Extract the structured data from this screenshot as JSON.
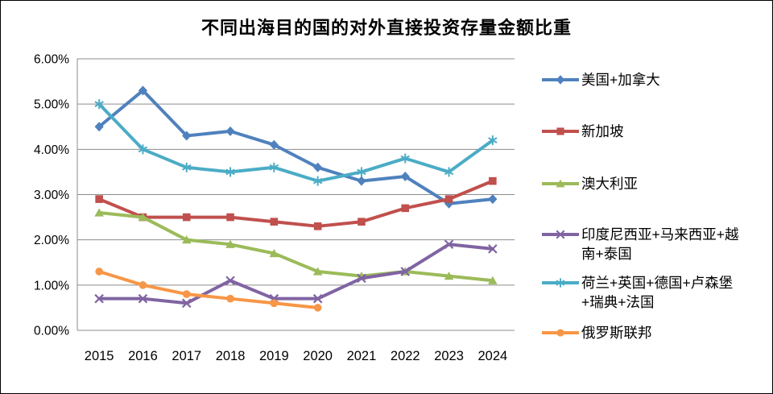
{
  "chart_data": {
    "type": "line",
    "title": "不同出海目的国的对外直接投资存量金额比重",
    "categories": [
      "2015",
      "2016",
      "2017",
      "2018",
      "2019",
      "2020",
      "2021",
      "2022",
      "2023",
      "2024"
    ],
    "series": [
      {
        "name": "美国+加拿大",
        "color": "#4F81BD",
        "marker": "diamond",
        "values": [
          4.5,
          5.3,
          4.3,
          4.4,
          4.1,
          3.6,
          3.3,
          3.4,
          2.8,
          2.9
        ]
      },
      {
        "name": "新加坡",
        "color": "#C0504D",
        "marker": "square",
        "values": [
          2.9,
          2.5,
          2.5,
          2.5,
          2.4,
          2.3,
          2.4,
          2.7,
          2.9,
          3.3
        ]
      },
      {
        "name": "澳大利亚",
        "color": "#9BBB59",
        "marker": "triangle",
        "values": [
          2.6,
          2.5,
          2.0,
          1.9,
          1.7,
          1.3,
          1.2,
          1.3,
          1.2,
          1.1
        ]
      },
      {
        "name": "印度尼西亚+马来西亚+越南+泰国",
        "color": "#8064A2",
        "marker": "x",
        "values": [
          0.7,
          0.7,
          0.6,
          1.1,
          0.7,
          0.7,
          1.15,
          1.3,
          1.9,
          1.8
        ]
      },
      {
        "name": "荷兰+英国+德国+卢森堡+瑞典+法国",
        "color": "#4BACC6",
        "marker": "asterisk",
        "values": [
          5.0,
          4.0,
          3.6,
          3.5,
          3.6,
          3.3,
          3.5,
          3.8,
          3.5,
          4.2
        ]
      },
      {
        "name": "俄罗斯联邦",
        "color": "#F79646",
        "marker": "circle",
        "values": [
          1.3,
          1.0,
          0.8,
          0.7,
          0.6,
          0.5,
          null,
          null,
          null,
          null
        ]
      }
    ],
    "y_axis": {
      "min": 0,
      "max": 6,
      "step": 1,
      "tick_labels": [
        "0.00%",
        "1.00%",
        "2.00%",
        "3.00%",
        "4.00%",
        "5.00%",
        "6.00%"
      ]
    },
    "grid": true,
    "legend_position": "right",
    "grid_color": "#8C8C8C",
    "text_color": "#000000"
  }
}
